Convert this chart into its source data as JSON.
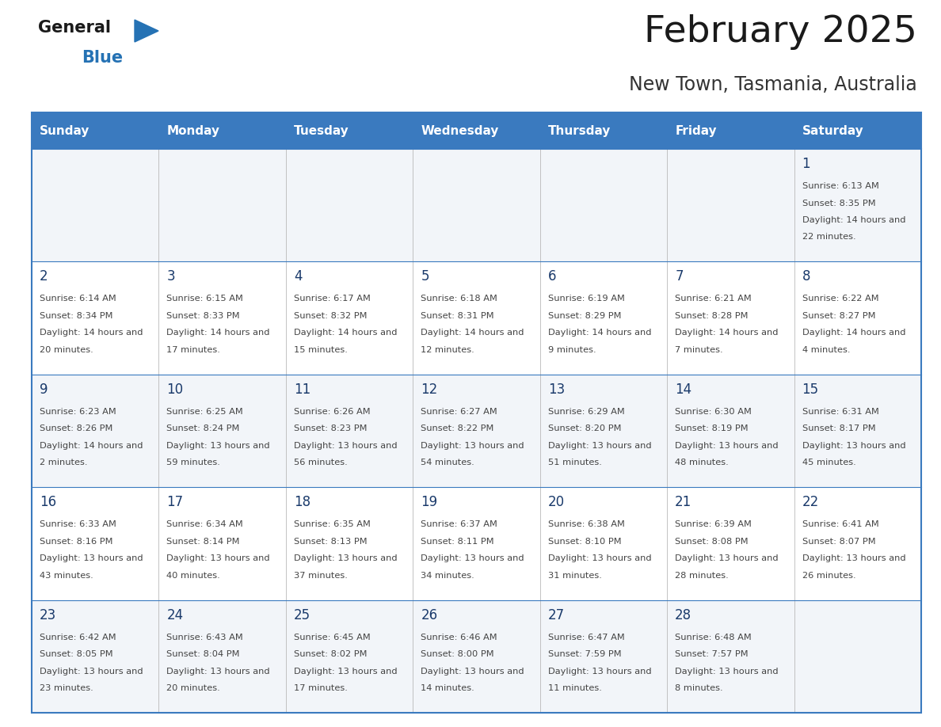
{
  "title": "February 2025",
  "subtitle": "New Town, Tasmania, Australia",
  "header_color": "#3a7abf",
  "header_text_color": "#ffffff",
  "border_color": "#3a7abf",
  "cell_bg_even": "#f2f5f9",
  "cell_bg_odd": "#ffffff",
  "day_headers": [
    "Sunday",
    "Monday",
    "Tuesday",
    "Wednesday",
    "Thursday",
    "Friday",
    "Saturday"
  ],
  "title_color": "#1a1a1a",
  "subtitle_color": "#333333",
  "day_number_color": "#1a3a6b",
  "info_color": "#444444",
  "general_text_color": "#1a1a1a",
  "blue_color": "#2572b4",
  "calendar_data": [
    [
      null,
      null,
      null,
      null,
      null,
      null,
      {
        "day": "1",
        "sunrise": "6:13 AM",
        "sunset": "8:35 PM",
        "daylight": "14 hours and 22 minutes."
      }
    ],
    [
      {
        "day": "2",
        "sunrise": "6:14 AM",
        "sunset": "8:34 PM",
        "daylight": "14 hours and 20 minutes."
      },
      {
        "day": "3",
        "sunrise": "6:15 AM",
        "sunset": "8:33 PM",
        "daylight": "14 hours and 17 minutes."
      },
      {
        "day": "4",
        "sunrise": "6:17 AM",
        "sunset": "8:32 PM",
        "daylight": "14 hours and 15 minutes."
      },
      {
        "day": "5",
        "sunrise": "6:18 AM",
        "sunset": "8:31 PM",
        "daylight": "14 hours and 12 minutes."
      },
      {
        "day": "6",
        "sunrise": "6:19 AM",
        "sunset": "8:29 PM",
        "daylight": "14 hours and 9 minutes."
      },
      {
        "day": "7",
        "sunrise": "6:21 AM",
        "sunset": "8:28 PM",
        "daylight": "14 hours and 7 minutes."
      },
      {
        "day": "8",
        "sunrise": "6:22 AM",
        "sunset": "8:27 PM",
        "daylight": "14 hours and 4 minutes."
      }
    ],
    [
      {
        "day": "9",
        "sunrise": "6:23 AM",
        "sunset": "8:26 PM",
        "daylight": "14 hours and 2 minutes."
      },
      {
        "day": "10",
        "sunrise": "6:25 AM",
        "sunset": "8:24 PM",
        "daylight": "13 hours and 59 minutes."
      },
      {
        "day": "11",
        "sunrise": "6:26 AM",
        "sunset": "8:23 PM",
        "daylight": "13 hours and 56 minutes."
      },
      {
        "day": "12",
        "sunrise": "6:27 AM",
        "sunset": "8:22 PM",
        "daylight": "13 hours and 54 minutes."
      },
      {
        "day": "13",
        "sunrise": "6:29 AM",
        "sunset": "8:20 PM",
        "daylight": "13 hours and 51 minutes."
      },
      {
        "day": "14",
        "sunrise": "6:30 AM",
        "sunset": "8:19 PM",
        "daylight": "13 hours and 48 minutes."
      },
      {
        "day": "15",
        "sunrise": "6:31 AM",
        "sunset": "8:17 PM",
        "daylight": "13 hours and 45 minutes."
      }
    ],
    [
      {
        "day": "16",
        "sunrise": "6:33 AM",
        "sunset": "8:16 PM",
        "daylight": "13 hours and 43 minutes."
      },
      {
        "day": "17",
        "sunrise": "6:34 AM",
        "sunset": "8:14 PM",
        "daylight": "13 hours and 40 minutes."
      },
      {
        "day": "18",
        "sunrise": "6:35 AM",
        "sunset": "8:13 PM",
        "daylight": "13 hours and 37 minutes."
      },
      {
        "day": "19",
        "sunrise": "6:37 AM",
        "sunset": "8:11 PM",
        "daylight": "13 hours and 34 minutes."
      },
      {
        "day": "20",
        "sunrise": "6:38 AM",
        "sunset": "8:10 PM",
        "daylight": "13 hours and 31 minutes."
      },
      {
        "day": "21",
        "sunrise": "6:39 AM",
        "sunset": "8:08 PM",
        "daylight": "13 hours and 28 minutes."
      },
      {
        "day": "22",
        "sunrise": "6:41 AM",
        "sunset": "8:07 PM",
        "daylight": "13 hours and 26 minutes."
      }
    ],
    [
      {
        "day": "23",
        "sunrise": "6:42 AM",
        "sunset": "8:05 PM",
        "daylight": "13 hours and 23 minutes."
      },
      {
        "day": "24",
        "sunrise": "6:43 AM",
        "sunset": "8:04 PM",
        "daylight": "13 hours and 20 minutes."
      },
      {
        "day": "25",
        "sunrise": "6:45 AM",
        "sunset": "8:02 PM",
        "daylight": "13 hours and 17 minutes."
      },
      {
        "day": "26",
        "sunrise": "6:46 AM",
        "sunset": "8:00 PM",
        "daylight": "13 hours and 14 minutes."
      },
      {
        "day": "27",
        "sunrise": "6:47 AM",
        "sunset": "7:59 PM",
        "daylight": "13 hours and 11 minutes."
      },
      {
        "day": "28",
        "sunrise": "6:48 AM",
        "sunset": "7:57 PM",
        "daylight": "13 hours and 8 minutes."
      },
      null
    ]
  ],
  "fig_width": 11.88,
  "fig_height": 9.18,
  "dpi": 100
}
